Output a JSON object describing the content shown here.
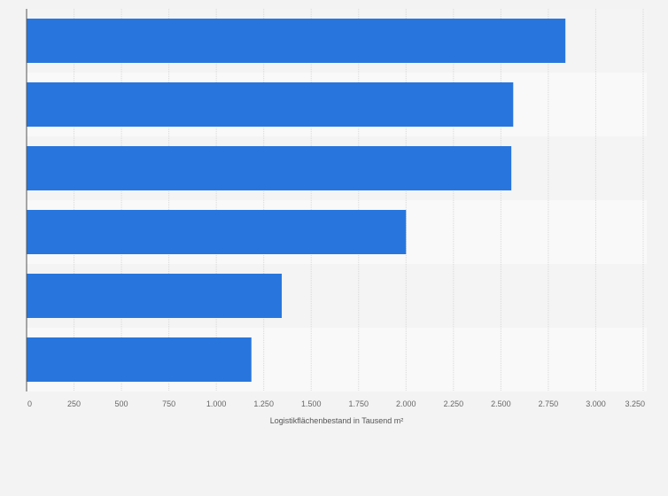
{
  "chart_data": {
    "type": "bar",
    "orientation": "horizontal",
    "categories": [
      "",
      "",
      "",
      "",
      "",
      ""
    ],
    "values": [
      2840,
      2565,
      2555,
      2000,
      1345,
      1185
    ],
    "xlabel": "Logistikflächenbestand in Tausend m²",
    "ylabel": "",
    "xlim": [
      0,
      3250
    ],
    "x_ticks": [
      0,
      250,
      500,
      750,
      1000,
      1250,
      1500,
      1750,
      2000,
      2250,
      2500,
      2750,
      3000,
      3250
    ],
    "x_tick_labels": [
      "0",
      "250",
      "500",
      "750",
      "1.000",
      "1.250",
      "1.500",
      "1.750",
      "2.000",
      "2.250",
      "2.500",
      "2.750",
      "3.000",
      "3.250"
    ],
    "grid": true,
    "bar_color": "#2876dd"
  }
}
